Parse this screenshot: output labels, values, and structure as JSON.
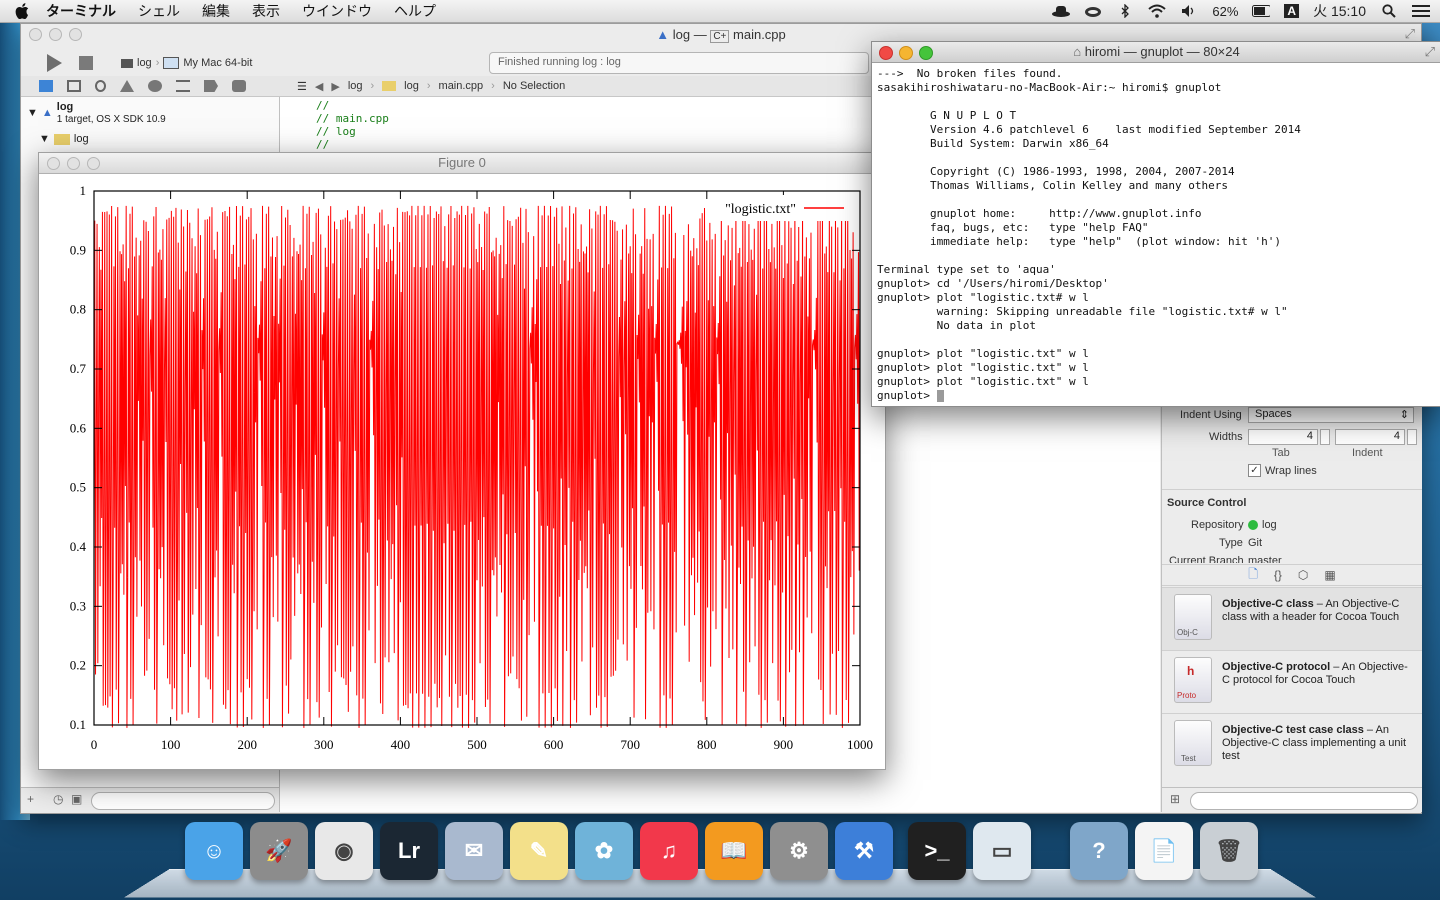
{
  "menubar": {
    "app_name": "ターミナル",
    "items": [
      "シェル",
      "編集",
      "表示",
      "ウインドウ",
      "ヘルプ"
    ],
    "battery": "62%",
    "input_mode": "A",
    "clock": "火 15:10"
  },
  "xcode": {
    "title_project": "log",
    "title_sep": "—",
    "title_file": "main.cpp",
    "scheme": "log",
    "destination": "My Mac 64-bit",
    "activity": "Finished running log : log",
    "jumpbar": [
      "log",
      "log",
      "main.cpp",
      "No Selection"
    ],
    "navigator": {
      "project": "log",
      "project_sub": "1 target, OS X SDK 10.9",
      "group": "log"
    },
    "code_lines": [
      "//",
      "//  main.cpp",
      "//  log",
      "//"
    ],
    "inspector": {
      "indent_using_label": "Indent Using",
      "indent_using_value": "Spaces",
      "widths_label": "Widths",
      "tab_value": "4",
      "indent_value": "4",
      "tab_label": "Tab",
      "indent_label": "Indent",
      "wrap_lines": "Wrap lines",
      "source_control_title": "Source Control",
      "repository_label": "Repository",
      "repository_value": "log",
      "type_label": "Type",
      "type_value": "Git",
      "branch_label": "Current Branch",
      "branch_value": "master"
    },
    "templates": [
      {
        "name": "Objective-C class",
        "desc": " – An Objective-C class with a header for Cocoa Touch",
        "badge": "Obj-C"
      },
      {
        "name": "Objective-C protocol",
        "desc": " – An Objective-C protocol for Cocoa Touch",
        "badge": "Proto"
      },
      {
        "name": "Objective-C test case class",
        "desc": " – An Objective-C class implementing a unit test",
        "badge": "Test"
      }
    ]
  },
  "figure": {
    "title": "Figure 0"
  },
  "chart_data": {
    "type": "line",
    "legend": "\"logistic.txt\"",
    "legend_position": "top-right",
    "xlim": [
      0,
      1000
    ],
    "ylim": [
      0.1,
      1
    ],
    "xticks": [
      "0",
      "100",
      "200",
      "300",
      "400",
      "500",
      "600",
      "700",
      "800",
      "900",
      "1000"
    ],
    "yticks": [
      "0.1",
      "0.2",
      "0.3",
      "0.4",
      "0.5",
      "0.6",
      "0.7",
      "0.8",
      "0.9",
      "1"
    ],
    "series": [
      {
        "name": "\"logistic.txt\"",
        "color": "#ff0000",
        "generator": "logistic map x(n+1)=3.9*x(n)*(1-x(n)), n=0..1000, range 0.17–0.97"
      }
    ]
  },
  "terminal": {
    "title": "hiromi — gnuplot — 80×24",
    "lines": [
      "--->  No broken files found.",
      "sasakihiroshiwataru-no-MacBook-Air:~ hiromi$ gnuplot",
      "",
      "        G N U P L O T",
      "        Version 4.6 patchlevel 6    last modified September 2014",
      "        Build System: Darwin x86_64",
      "",
      "        Copyright (C) 1986-1993, 1998, 2004, 2007-2014",
      "        Thomas Williams, Colin Kelley and many others",
      "",
      "        gnuplot home:     http://www.gnuplot.info",
      "        faq, bugs, etc:   type \"help FAQ\"",
      "        immediate help:   type \"help\"  (plot window: hit 'h')",
      "",
      "Terminal type set to 'aqua'",
      "gnuplot> cd '/Users/hiromi/Desktop'",
      "gnuplot> plot \"logistic.txt# w l",
      "         warning: Skipping unreadable file \"logistic.txt# w l\"",
      "         No data in plot",
      "",
      "gnuplot> plot \"logistic.txt\" w l",
      "gnuplot> plot \"logistic.txt\" w l",
      "gnuplot> plot \"logistic.txt\" w l"
    ],
    "prompt": "gnuplot> "
  },
  "dock": {
    "apps": [
      {
        "name": "Finder",
        "color": "#4aa3e8",
        "glyph": "☺"
      },
      {
        "name": "Launchpad",
        "color": "#8c8c8c",
        "glyph": "🚀"
      },
      {
        "name": "Google Chrome",
        "color": "#e8e8e8",
        "glyph": "◉"
      },
      {
        "name": "Lightroom",
        "color": "#1b2733",
        "glyph": "Lr"
      },
      {
        "name": "Mail",
        "color": "#a9b9cf",
        "glyph": "✉"
      },
      {
        "name": "Stickies",
        "color": "#f3e08a",
        "glyph": "✎"
      },
      {
        "name": "iPhoto",
        "color": "#6fb3d9",
        "glyph": "✿"
      },
      {
        "name": "iTunes",
        "color": "#f2384b",
        "glyph": "♫"
      },
      {
        "name": "iBooks",
        "color": "#f39a1f",
        "glyph": "📖"
      },
      {
        "name": "System Preferences",
        "color": "#8f8f8f",
        "glyph": "⚙"
      },
      {
        "name": "Xcode",
        "color": "#3d7fd9",
        "glyph": "⚒"
      },
      {
        "name": "Terminal",
        "color": "#202020",
        "glyph": ">_"
      },
      {
        "name": "Preview",
        "color": "#dfe8ef",
        "glyph": "▭"
      },
      {
        "name": "Help",
        "color": "#7fa6c9",
        "glyph": "?"
      },
      {
        "name": "Documents",
        "color": "#f4f4f4",
        "glyph": "📄"
      },
      {
        "name": "Trash",
        "color": "#c9cfd4",
        "glyph": "🗑"
      }
    ]
  }
}
